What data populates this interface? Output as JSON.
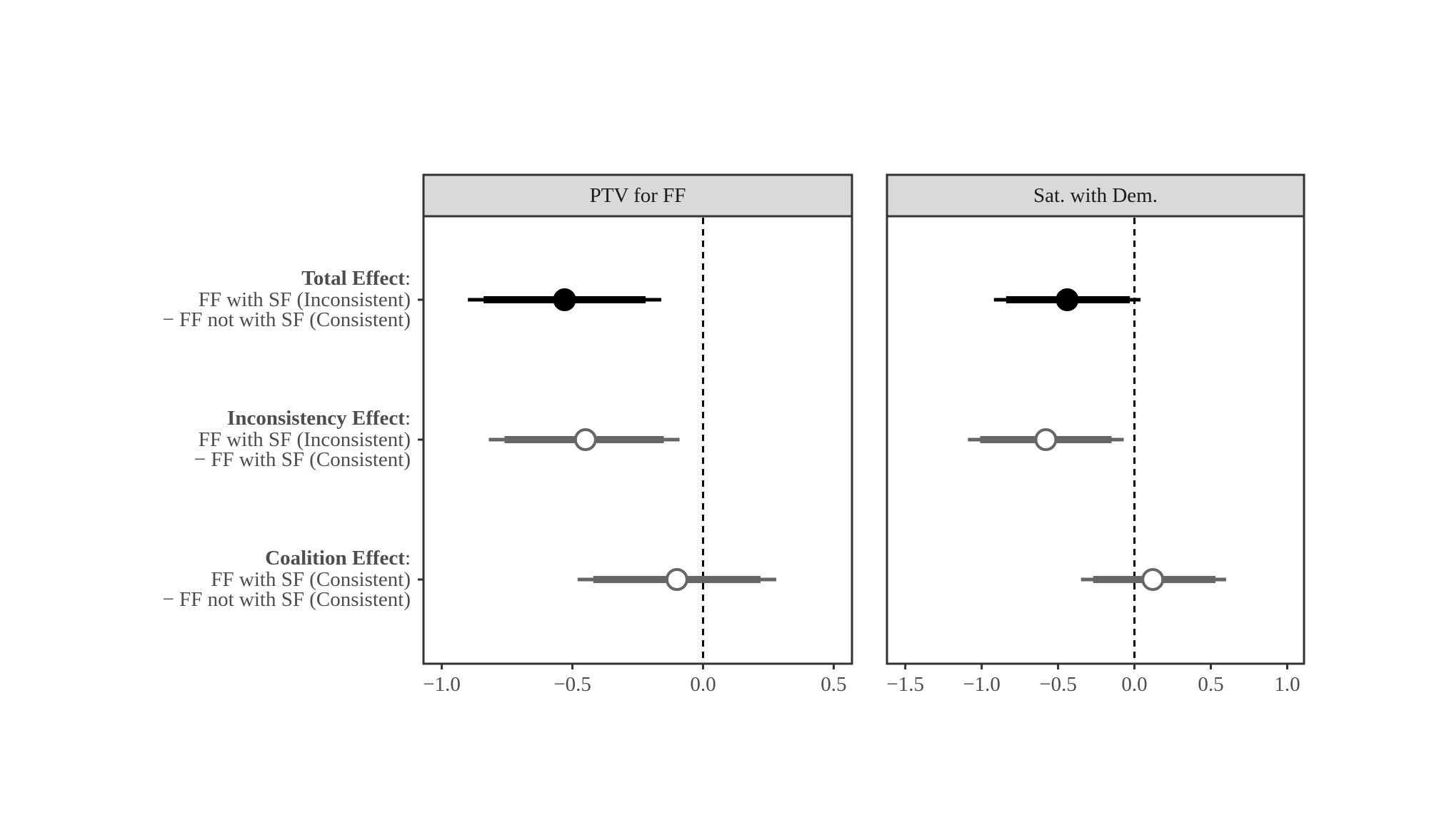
{
  "chart_data": {
    "type": "scatter",
    "subtype": "coefficient-plot",
    "title": "",
    "xlabel": "",
    "ylabel": "",
    "grid": false,
    "legend": "none",
    "colors": {
      "significant": "#000000",
      "nonsignificant": "#666666",
      "panel_border": "#333333",
      "strip_fill": "#d9d9d9"
    },
    "rows": [
      {
        "title": "Total Effect",
        "colon": ":",
        "line1": "FF with SF (Inconsistent)",
        "line2": "− FF not with SF (Consistent)"
      },
      {
        "title": "Inconsistency Effect",
        "colon": ":",
        "line1": "FF with SF (Inconsistent)",
        "line2": "− FF with SF (Consistent)"
      },
      {
        "title": "Coalition Effect",
        "colon": ":",
        "line1": "FF with SF (Consistent)",
        "line2": "− FF not with SF (Consistent)"
      }
    ],
    "panels": [
      {
        "strip": "PTV for FF",
        "xlim": [
          -1.07,
          0.57
        ],
        "ticks": [
          -1.0,
          -0.5,
          0.0,
          0.5
        ],
        "tick_labels": [
          "−1.0",
          "−0.5",
          "0.0",
          "0.5"
        ],
        "reference_line": 0,
        "points": [
          {
            "row": 0,
            "estimate": -0.53,
            "ci90": [
              -0.84,
              -0.22
            ],
            "ci95": [
              -0.9,
              -0.16
            ],
            "filled": true
          },
          {
            "row": 1,
            "estimate": -0.45,
            "ci90": [
              -0.76,
              -0.15
            ],
            "ci95": [
              -0.82,
              -0.09
            ],
            "filled": false
          },
          {
            "row": 2,
            "estimate": -0.1,
            "ci90": [
              -0.42,
              0.22
            ],
            "ci95": [
              -0.48,
              0.28
            ],
            "filled": false
          }
        ]
      },
      {
        "strip": "Sat. with Dem.",
        "xlim": [
          -1.62,
          1.11
        ],
        "ticks": [
          -1.5,
          -1.0,
          -0.5,
          0.0,
          0.5,
          1.0
        ],
        "tick_labels": [
          "−1.5",
          "−1.0",
          "−0.5",
          "0.0",
          "0.5",
          "1.0"
        ],
        "reference_line": 0,
        "points": [
          {
            "row": 0,
            "estimate": -0.44,
            "ci90": [
              -0.84,
              -0.03
            ],
            "ci95": [
              -0.92,
              0.04
            ],
            "filled": true
          },
          {
            "row": 1,
            "estimate": -0.58,
            "ci90": [
              -1.01,
              -0.15
            ],
            "ci95": [
              -1.09,
              -0.07
            ],
            "filled": false
          },
          {
            "row": 2,
            "estimate": 0.12,
            "ci90": [
              -0.27,
              0.53
            ],
            "ci95": [
              -0.35,
              0.6
            ],
            "filled": false
          }
        ]
      }
    ]
  }
}
